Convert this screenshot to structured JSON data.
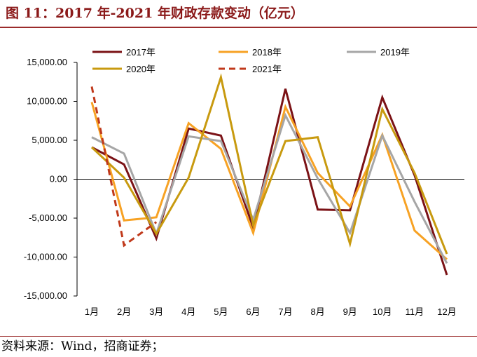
{
  "figure": {
    "title": "图 11：2017 年-2021 年财政存款变动（亿元）",
    "source": "资料来源：Wind，招商证券；"
  },
  "chart_data": {
    "type": "line",
    "title": "",
    "xlabel": "",
    "ylabel": "",
    "ylim": [
      -15000,
      15000
    ],
    "y_ticks": [
      15000,
      10000,
      5000,
      0,
      -5000,
      -10000,
      -15000
    ],
    "y_tick_labels": [
      "15,000.00",
      "10,000.00",
      "5,000.00",
      "0.00",
      "-5,000.00",
      "-10,000.00",
      "-15,000.00"
    ],
    "categories": [
      "1月",
      "2月",
      "3月",
      "4月",
      "5月",
      "6月",
      "7月",
      "8月",
      "9月",
      "10月",
      "11月",
      "12月"
    ],
    "grid": false,
    "legend_position": "top",
    "series": [
      {
        "name": "2017年",
        "color": "#7b1216",
        "dashed": false,
        "values": [
          4100,
          1900,
          -7600,
          6500,
          5600,
          -6200,
          11600,
          -3900,
          -4000,
          10500,
          500,
          -12300
        ]
      },
      {
        "name": "2018年",
        "color": "#f7a224",
        "dashed": false,
        "values": [
          9900,
          -5300,
          -4900,
          7200,
          3900,
          -6900,
          9300,
          800,
          -3500,
          5700,
          -6600,
          -10300
        ]
      },
      {
        "name": "2019年",
        "color": "#a6a6a6",
        "dashed": false,
        "values": [
          5400,
          3300,
          -7000,
          5500,
          4900,
          -5200,
          8200,
          100,
          -6900,
          5600,
          -2900,
          -10800
        ]
      },
      {
        "name": "2020年",
        "color": "#c89a0f",
        "dashed": false,
        "values": [
          4100,
          200,
          -7000,
          200,
          13100,
          -5900,
          4900,
          5400,
          -8300,
          9000,
          800,
          -9600
        ]
      },
      {
        "name": "2021年",
        "color": "#c0391b",
        "dashed": true,
        "values": [
          11900,
          -8500,
          -5500,
          null,
          null,
          null,
          null,
          null,
          null,
          null,
          null,
          null
        ]
      }
    ]
  }
}
